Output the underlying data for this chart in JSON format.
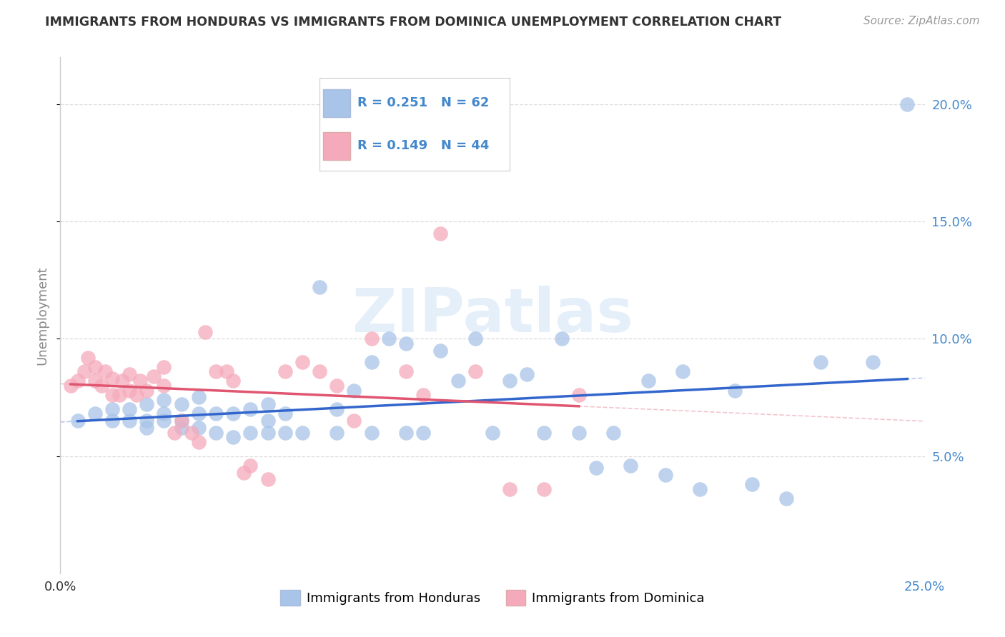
{
  "title": "IMMIGRANTS FROM HONDURAS VS IMMIGRANTS FROM DOMINICA UNEMPLOYMENT CORRELATION CHART",
  "source": "Source: ZipAtlas.com",
  "ylabel": "Unemployment",
  "legend_blue_r": "R = 0.251",
  "legend_blue_n": "N = 62",
  "legend_pink_r": "R = 0.149",
  "legend_pink_n": "N = 44",
  "watermark": "ZIPatlas",
  "blue_color": "#A8C4E8",
  "pink_color": "#F5AABB",
  "blue_line_color": "#3366CC",
  "pink_line_color": "#E05570",
  "blue_label": "Immigrants from Honduras",
  "pink_label": "Immigrants from Dominica",
  "xlim": [
    0.0,
    0.25
  ],
  "ylim": [
    0.0,
    0.22
  ],
  "yticks": [
    0.05,
    0.1,
    0.15,
    0.2
  ],
  "ytick_labels": [
    "5.0%",
    "10.0%",
    "15.0%",
    "20.0%"
  ],
  "xticks": [
    0.0,
    0.05,
    0.1,
    0.15,
    0.2,
    0.25
  ],
  "blue_x": [
    0.005,
    0.01,
    0.015,
    0.015,
    0.02,
    0.02,
    0.025,
    0.025,
    0.025,
    0.03,
    0.03,
    0.03,
    0.035,
    0.035,
    0.035,
    0.04,
    0.04,
    0.04,
    0.045,
    0.045,
    0.05,
    0.05,
    0.055,
    0.055,
    0.06,
    0.06,
    0.06,
    0.065,
    0.065,
    0.07,
    0.075,
    0.08,
    0.08,
    0.085,
    0.09,
    0.09,
    0.095,
    0.1,
    0.1,
    0.105,
    0.11,
    0.115,
    0.12,
    0.125,
    0.13,
    0.135,
    0.14,
    0.145,
    0.15,
    0.155,
    0.16,
    0.165,
    0.17,
    0.175,
    0.18,
    0.185,
    0.195,
    0.2,
    0.21,
    0.22,
    0.235,
    0.245
  ],
  "blue_y": [
    0.065,
    0.068,
    0.065,
    0.07,
    0.065,
    0.07,
    0.062,
    0.065,
    0.072,
    0.065,
    0.068,
    0.074,
    0.062,
    0.065,
    0.072,
    0.062,
    0.068,
    0.075,
    0.06,
    0.068,
    0.058,
    0.068,
    0.06,
    0.07,
    0.06,
    0.065,
    0.072,
    0.06,
    0.068,
    0.06,
    0.122,
    0.06,
    0.07,
    0.078,
    0.06,
    0.09,
    0.1,
    0.06,
    0.098,
    0.06,
    0.095,
    0.082,
    0.1,
    0.06,
    0.082,
    0.085,
    0.06,
    0.1,
    0.06,
    0.045,
    0.06,
    0.046,
    0.082,
    0.042,
    0.086,
    0.036,
    0.078,
    0.038,
    0.032,
    0.09,
    0.09,
    0.2
  ],
  "pink_x": [
    0.003,
    0.005,
    0.007,
    0.008,
    0.01,
    0.01,
    0.012,
    0.013,
    0.015,
    0.015,
    0.017,
    0.018,
    0.02,
    0.02,
    0.022,
    0.023,
    0.025,
    0.027,
    0.03,
    0.03,
    0.033,
    0.035,
    0.038,
    0.04,
    0.042,
    0.045,
    0.048,
    0.05,
    0.053,
    0.055,
    0.06,
    0.065,
    0.07,
    0.075,
    0.08,
    0.085,
    0.09,
    0.1,
    0.105,
    0.11,
    0.12,
    0.13,
    0.14,
    0.15
  ],
  "pink_y": [
    0.08,
    0.082,
    0.086,
    0.092,
    0.082,
    0.088,
    0.08,
    0.086,
    0.076,
    0.083,
    0.076,
    0.082,
    0.078,
    0.085,
    0.076,
    0.082,
    0.078,
    0.084,
    0.08,
    0.088,
    0.06,
    0.065,
    0.06,
    0.056,
    0.103,
    0.086,
    0.086,
    0.082,
    0.043,
    0.046,
    0.04,
    0.086,
    0.09,
    0.086,
    0.08,
    0.065,
    0.1,
    0.086,
    0.076,
    0.145,
    0.086,
    0.036,
    0.036,
    0.076
  ],
  "background_color": "#FFFFFF",
  "grid_color": "#DDDDDD",
  "tick_label_color": "#4488CC",
  "text_color": "#333333",
  "source_color": "#999999"
}
